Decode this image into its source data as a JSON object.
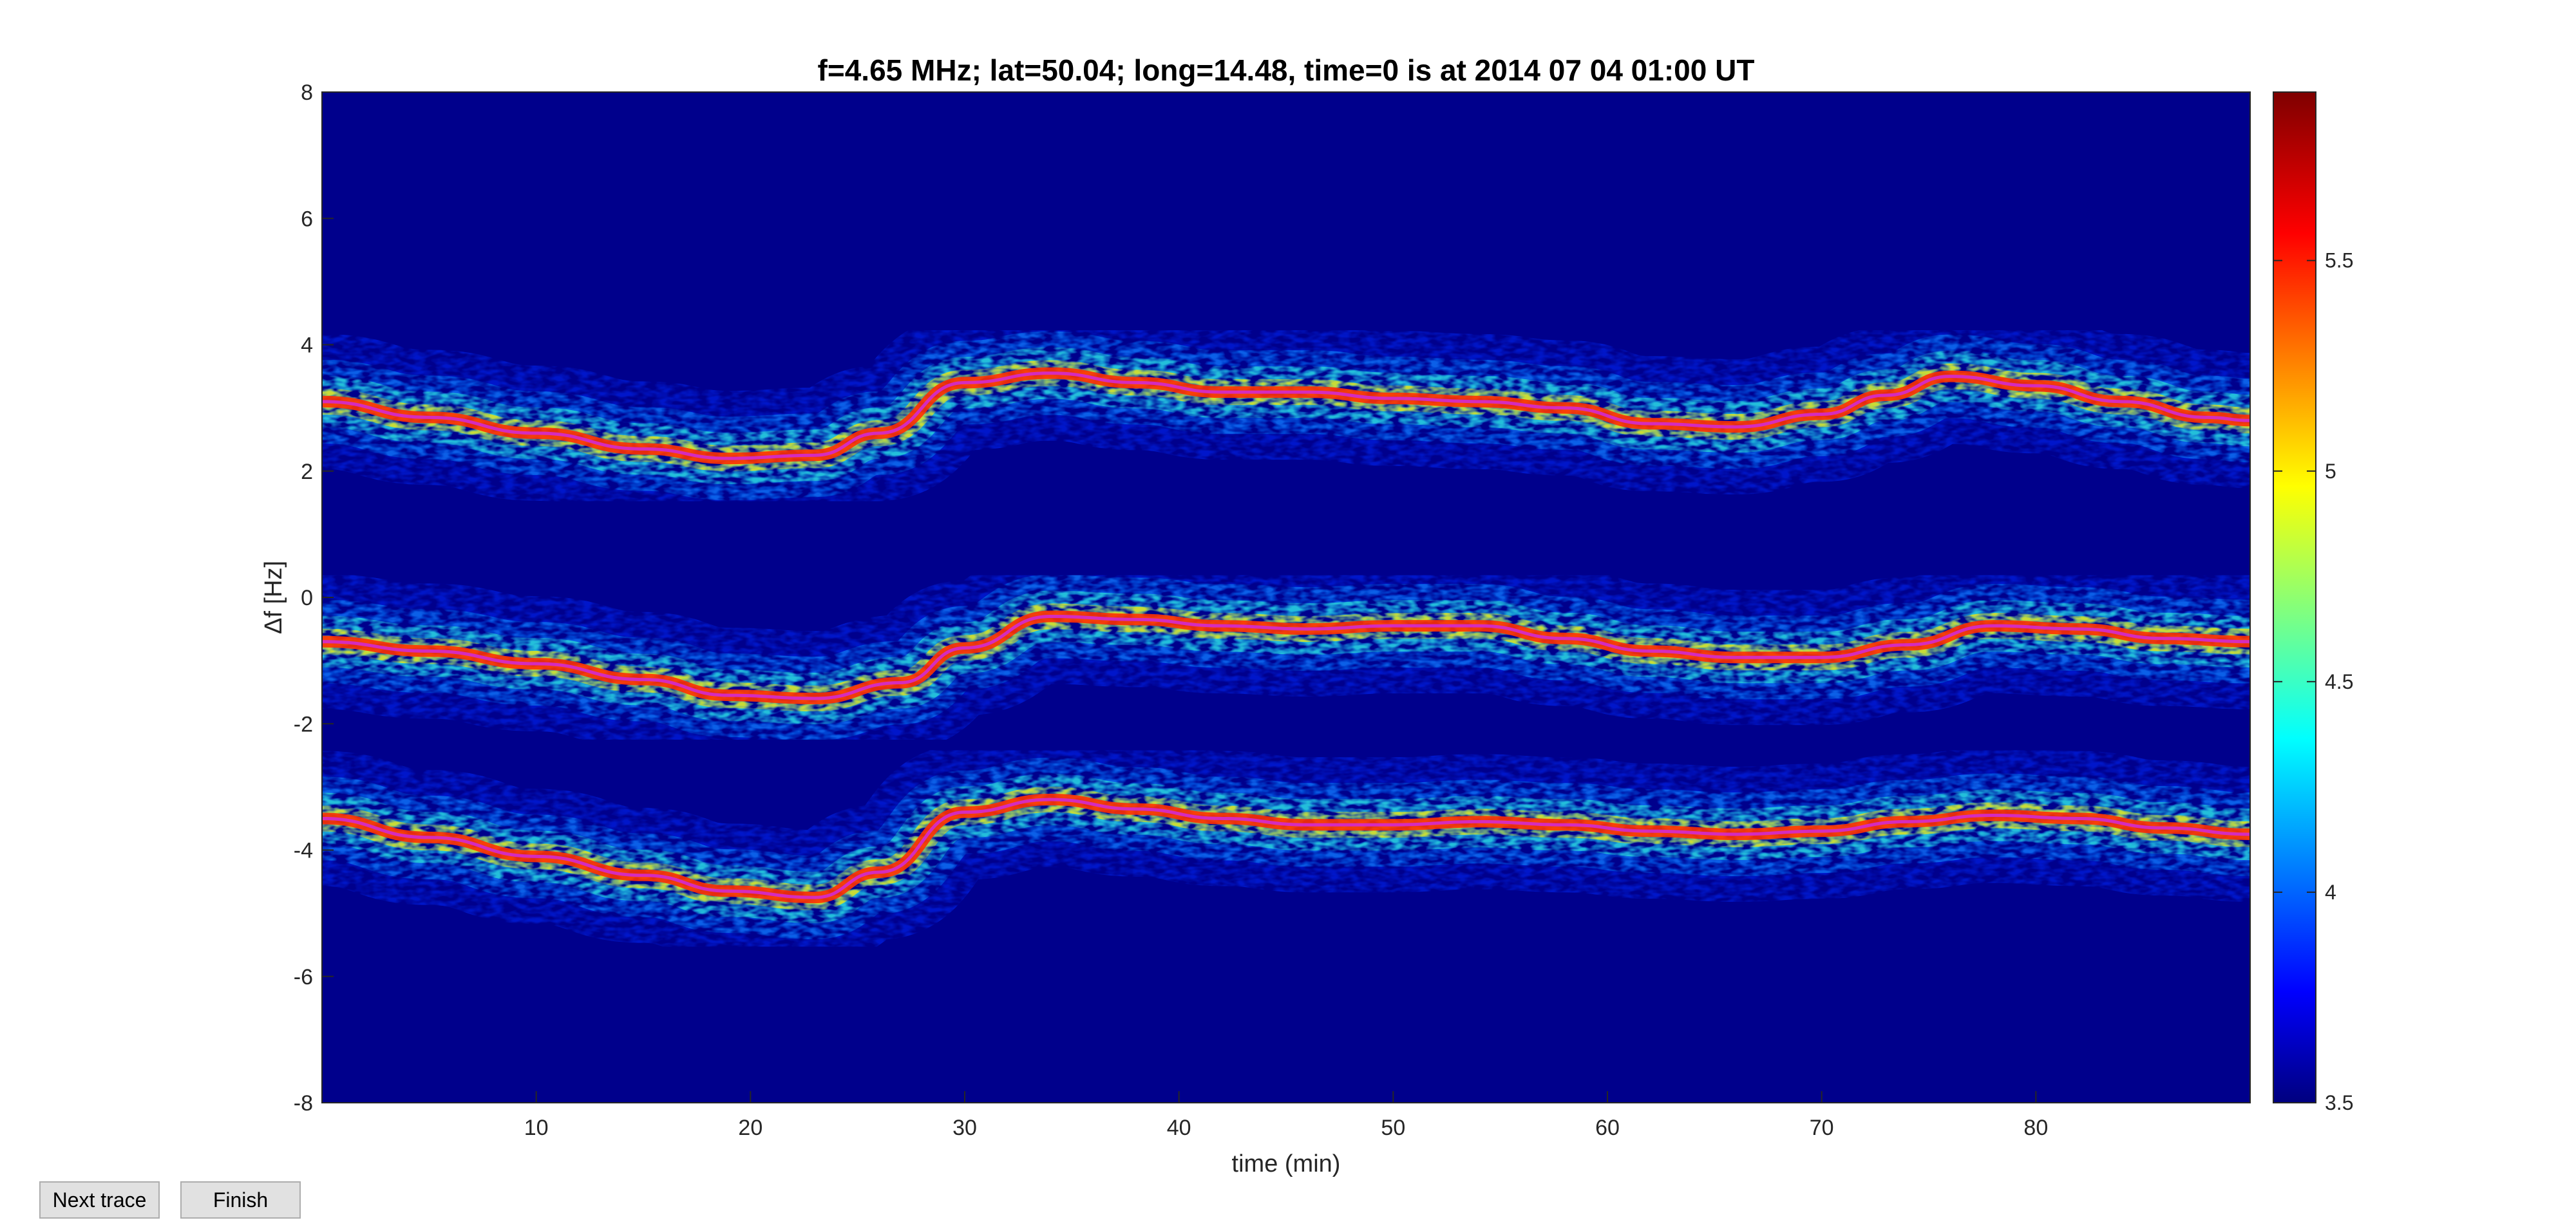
{
  "window": {
    "buttons": {
      "next_trace": "Next trace",
      "finish": "Finish"
    }
  },
  "chart_data": {
    "type": "heatmap",
    "title": "f=4.65 MHz;  lat=50.04; long=14.48, time=0 is at 2014 07 04 01:00 UT",
    "xlabel": "time (min)",
    "ylabel": "Δf [Hz]",
    "xlim": [
      0,
      90
    ],
    "ylim": [
      -8,
      8
    ],
    "x_ticks": [
      10,
      20,
      30,
      40,
      50,
      60,
      70,
      80
    ],
    "y_ticks": [
      -8,
      -6,
      -4,
      -2,
      0,
      2,
      4,
      6,
      8
    ],
    "colormap": "jet",
    "colorbar": {
      "range": [
        3.5,
        5.9
      ],
      "ticks": [
        3.5,
        4,
        4.5,
        5,
        5.5
      ]
    },
    "traces": [
      {
        "name": "upper",
        "t": [
          0,
          5,
          10,
          15,
          19,
          23,
          26,
          30,
          34,
          38,
          42,
          46,
          50,
          54,
          58,
          62,
          66,
          70,
          73,
          76,
          80,
          84,
          88,
          90
        ],
        "df": [
          3.1,
          2.85,
          2.6,
          2.35,
          2.2,
          2.25,
          2.6,
          3.4,
          3.55,
          3.4,
          3.25,
          3.25,
          3.15,
          3.1,
          3.0,
          2.75,
          2.7,
          2.9,
          3.2,
          3.5,
          3.35,
          3.1,
          2.85,
          2.8
        ]
      },
      {
        "name": "middle",
        "t": [
          0,
          5,
          10,
          15,
          19,
          23,
          27,
          30,
          34,
          38,
          42,
          46,
          50,
          54,
          58,
          62,
          66,
          70,
          74,
          78,
          82,
          86,
          90
        ],
        "df": [
          -0.7,
          -0.85,
          -1.05,
          -1.3,
          -1.55,
          -1.6,
          -1.35,
          -0.8,
          -0.3,
          -0.35,
          -0.45,
          -0.5,
          -0.45,
          -0.45,
          -0.65,
          -0.85,
          -0.95,
          -0.95,
          -0.75,
          -0.45,
          -0.5,
          -0.65,
          -0.7
        ]
      },
      {
        "name": "lower",
        "t": [
          0,
          5,
          10,
          15,
          19,
          23,
          26,
          30,
          34,
          38,
          42,
          46,
          50,
          54,
          58,
          62,
          66,
          70,
          74,
          78,
          82,
          86,
          90
        ],
        "df": [
          -3.5,
          -3.8,
          -4.1,
          -4.4,
          -4.65,
          -4.75,
          -4.35,
          -3.4,
          -3.2,
          -3.35,
          -3.5,
          -3.6,
          -3.6,
          -3.55,
          -3.6,
          -3.7,
          -3.75,
          -3.7,
          -3.55,
          -3.45,
          -3.5,
          -3.65,
          -3.75
        ]
      }
    ]
  }
}
